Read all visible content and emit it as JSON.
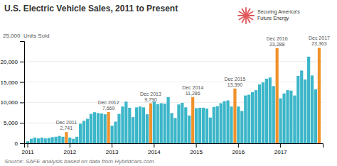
{
  "chart_data": {
    "type": "bar",
    "title": "U.S. Electric Vehicle Sales, 2011 to Present",
    "y_label": "25,000  Units Sold",
    "source": "Source: SAFE analysis based on data from Hybridcars.com",
    "logo_text": [
      "Securing America's",
      "Future Energy"
    ],
    "categories": [
      "2011",
      null,
      null,
      null,
      null,
      null,
      null,
      null,
      null,
      null,
      null,
      null,
      "2012",
      null,
      null,
      null,
      null,
      null,
      null,
      null,
      null,
      null,
      null,
      null,
      "2013",
      null,
      null,
      null,
      null,
      null,
      null,
      null,
      null,
      null,
      null,
      null,
      "2014",
      null,
      null,
      null,
      null,
      null,
      null,
      null,
      null,
      null,
      null,
      null,
      "2015",
      null,
      null,
      null,
      null,
      null,
      null,
      null,
      null,
      null,
      null,
      null,
      "2016",
      null,
      null,
      null,
      null,
      null,
      null,
      null,
      null,
      null,
      null,
      null,
      "2017",
      null,
      null,
      null,
      null,
      null,
      null,
      null,
      null,
      null,
      null,
      null
    ],
    "values": [
      500,
      1100,
      1400,
      1200,
      1400,
      1200,
      1300,
      1500,
      1600,
      1800,
      1600,
      2741,
      1400,
      1100,
      1600,
      4800,
      5500,
      6000,
      7200,
      7600,
      7400,
      7300,
      7100,
      7669,
      4300,
      5300,
      7200,
      9000,
      10200,
      8700,
      6400,
      8800,
      9000,
      8800,
      7100,
      9790,
      10200,
      9600,
      9800,
      9700,
      11300,
      7400,
      6200,
      9500,
      9900,
      8800,
      6800,
      11286,
      8600,
      8700,
      8700,
      8500,
      6300,
      8900,
      9100,
      9800,
      10300,
      10500,
      9000,
      13390,
      9000,
      7900,
      11700,
      11900,
      12500,
      13000,
      14400,
      14900,
      15800,
      16100,
      14000,
      23288,
      11000,
      12200,
      13000,
      12900,
      11700,
      16500,
      17800,
      15600,
      21200,
      16600,
      13200,
      23363
    ],
    "colors": [
      "#3cb6c9",
      "#3cb6c9",
      "#3cb6c9",
      "#3cb6c9",
      "#3cb6c9",
      "#3cb6c9",
      "#3cb6c9",
      "#3cb6c9",
      "#3cb6c9",
      "#3cb6c9",
      "#3cb6c9",
      "#f0922b",
      "#3cb6c9",
      "#3cb6c9",
      "#3cb6c9",
      "#3cb6c9",
      "#3cb6c9",
      "#3cb6c9",
      "#3cb6c9",
      "#3cb6c9",
      "#3cb6c9",
      "#3cb6c9",
      "#3cb6c9",
      "#f0922b",
      "#3cb6c9",
      "#3cb6c9",
      "#3cb6c9",
      "#3cb6c9",
      "#3cb6c9",
      "#3cb6c9",
      "#3cb6c9",
      "#3cb6c9",
      "#3cb6c9",
      "#3cb6c9",
      "#3cb6c9",
      "#f0922b",
      "#3cb6c9",
      "#3cb6c9",
      "#3cb6c9",
      "#3cb6c9",
      "#3cb6c9",
      "#3cb6c9",
      "#3cb6c9",
      "#3cb6c9",
      "#3cb6c9",
      "#3cb6c9",
      "#3cb6c9",
      "#f0922b",
      "#3cb6c9",
      "#3cb6c9",
      "#3cb6c9",
      "#3cb6c9",
      "#3cb6c9",
      "#3cb6c9",
      "#3cb6c9",
      "#3cb6c9",
      "#3cb6c9",
      "#3cb6c9",
      "#3cb6c9",
      "#f0922b",
      "#3cb6c9",
      "#3cb6c9",
      "#3cb6c9",
      "#3cb6c9",
      "#3cb6c9",
      "#3cb6c9",
      "#3cb6c9",
      "#3cb6c9",
      "#3cb6c9",
      "#3cb6c9",
      "#3cb6c9",
      "#f0922b",
      "#3cb6c9",
      "#3cb6c9",
      "#3cb6c9",
      "#3cb6c9",
      "#3cb6c9",
      "#3cb6c9",
      "#3cb6c9",
      "#3cb6c9",
      "#3cb6c9",
      "#3cb6c9",
      "#3cb6c9",
      "#f0922b"
    ],
    "annotations": [
      {
        "index": 11,
        "text": "Dec 2011\n2,741"
      },
      {
        "index": 23,
        "text": "Dec 2012\n7,669"
      },
      {
        "index": 35,
        "text": "Dec 2013\n9,790"
      },
      {
        "index": 47,
        "text": "Dec 2014\n11,286"
      },
      {
        "index": 59,
        "text": "Dec 2015\n13,390"
      },
      {
        "index": 71,
        "text": "Dec 2016\n23,288"
      },
      {
        "index": 83,
        "text": "Dec 2017\n23,363"
      }
    ],
    "ylim": [
      0,
      25000
    ],
    "yticks": [
      0,
      {
        "value": 5000,
        "label": "5,000"
      },
      {
        "value": 10000,
        "label": "10,000"
      },
      {
        "value": 15000,
        "label": "15,000"
      },
      {
        "value": 20000,
        "label": "20,000"
      }
    ],
    "grid": true
  }
}
